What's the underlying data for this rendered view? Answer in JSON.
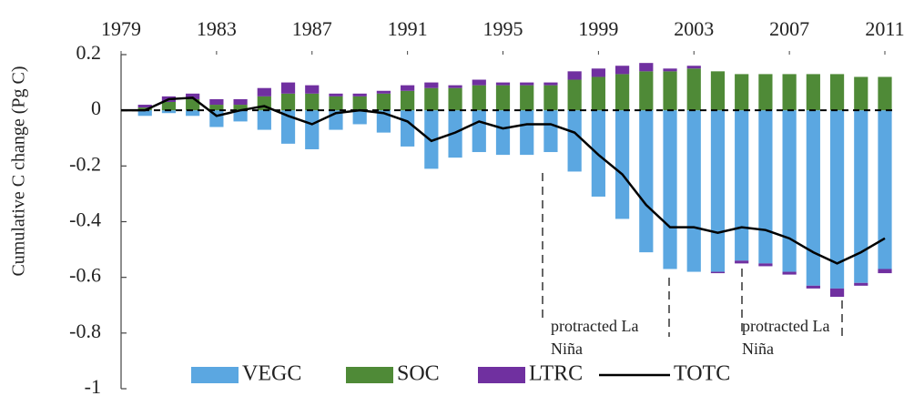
{
  "chart_data": {
    "type": "bar",
    "stacked": true,
    "y_label": "Cumulative C change (Pg C)",
    "x": [
      1979,
      1980,
      1981,
      1982,
      1983,
      1984,
      1985,
      1986,
      1987,
      1988,
      1989,
      1990,
      1991,
      1992,
      1993,
      1994,
      1995,
      1996,
      1997,
      1998,
      1999,
      2000,
      2001,
      2002,
      2003,
      2004,
      2005,
      2006,
      2007,
      2008,
      2009,
      2010,
      2011
    ],
    "xlim": [
      1979,
      2011
    ],
    "xticks": [
      1979,
      1983,
      1987,
      1991,
      1995,
      1999,
      2003,
      2007,
      2011
    ],
    "ylim": [
      -1,
      0.2
    ],
    "yticks": [
      0.2,
      0,
      -0.2,
      -0.4,
      -0.6,
      -0.8,
      -1
    ],
    "zero_line": "dashed",
    "legend": "bottom",
    "series": [
      {
        "name": "VEGC",
        "color": "#5ba7e1",
        "type": "bar",
        "values": [
          0,
          -0.02,
          -0.01,
          -0.02,
          -0.06,
          -0.04,
          -0.07,
          -0.12,
          -0.14,
          -0.07,
          -0.05,
          -0.08,
          -0.13,
          -0.21,
          -0.17,
          -0.15,
          -0.16,
          -0.16,
          -0.15,
          -0.22,
          -0.31,
          -0.39,
          -0.51,
          -0.57,
          -0.58,
          -0.58,
          -0.54,
          -0.55,
          -0.58,
          -0.63,
          -0.64,
          -0.62,
          -0.57
        ]
      },
      {
        "name": "SOC",
        "color": "#4f8a37",
        "type": "bar",
        "values": [
          0,
          0.01,
          0.03,
          0.04,
          0.02,
          0.02,
          0.05,
          0.06,
          0.06,
          0.05,
          0.05,
          0.06,
          0.07,
          0.08,
          0.08,
          0.09,
          0.09,
          0.09,
          0.09,
          0.11,
          0.12,
          0.13,
          0.14,
          0.14,
          0.15,
          0.14,
          0.13,
          0.13,
          0.13,
          0.13,
          0.13,
          0.12,
          0.12
        ]
      },
      {
        "name": "LTRC",
        "color": "#7030a0",
        "type": "bar",
        "values": [
          0,
          0.01,
          0.02,
          0.02,
          0.02,
          0.02,
          0.03,
          0.04,
          0.03,
          0.01,
          0.01,
          0.01,
          0.02,
          0.02,
          0.01,
          0.02,
          0.01,
          0.01,
          0.01,
          0.03,
          0.03,
          0.03,
          0.03,
          0.01,
          0.01,
          -0.005,
          -0.01,
          -0.01,
          -0.01,
          -0.01,
          -0.03,
          -0.01,
          -0.015
        ]
      },
      {
        "name": "TOTC",
        "color": "#000000",
        "type": "line",
        "values": [
          0,
          0.0,
          0.04,
          0.045,
          -0.02,
          0.0,
          0.015,
          -0.02,
          -0.05,
          -0.01,
          0.0,
          -0.01,
          -0.04,
          -0.11,
          -0.08,
          -0.04,
          -0.065,
          -0.05,
          -0.05,
          -0.08,
          -0.16,
          -0.23,
          -0.34,
          -0.42,
          -0.42,
          -0.44,
          -0.42,
          -0.43,
          -0.46,
          -0.51,
          -0.55,
          -0.51,
          -0.46
        ]
      }
    ],
    "annotations": [
      {
        "lines": [
          "protracted La",
          "Niña"
        ]
      },
      {
        "lines": [
          "protracted La",
          "Niña"
        ]
      }
    ]
  }
}
